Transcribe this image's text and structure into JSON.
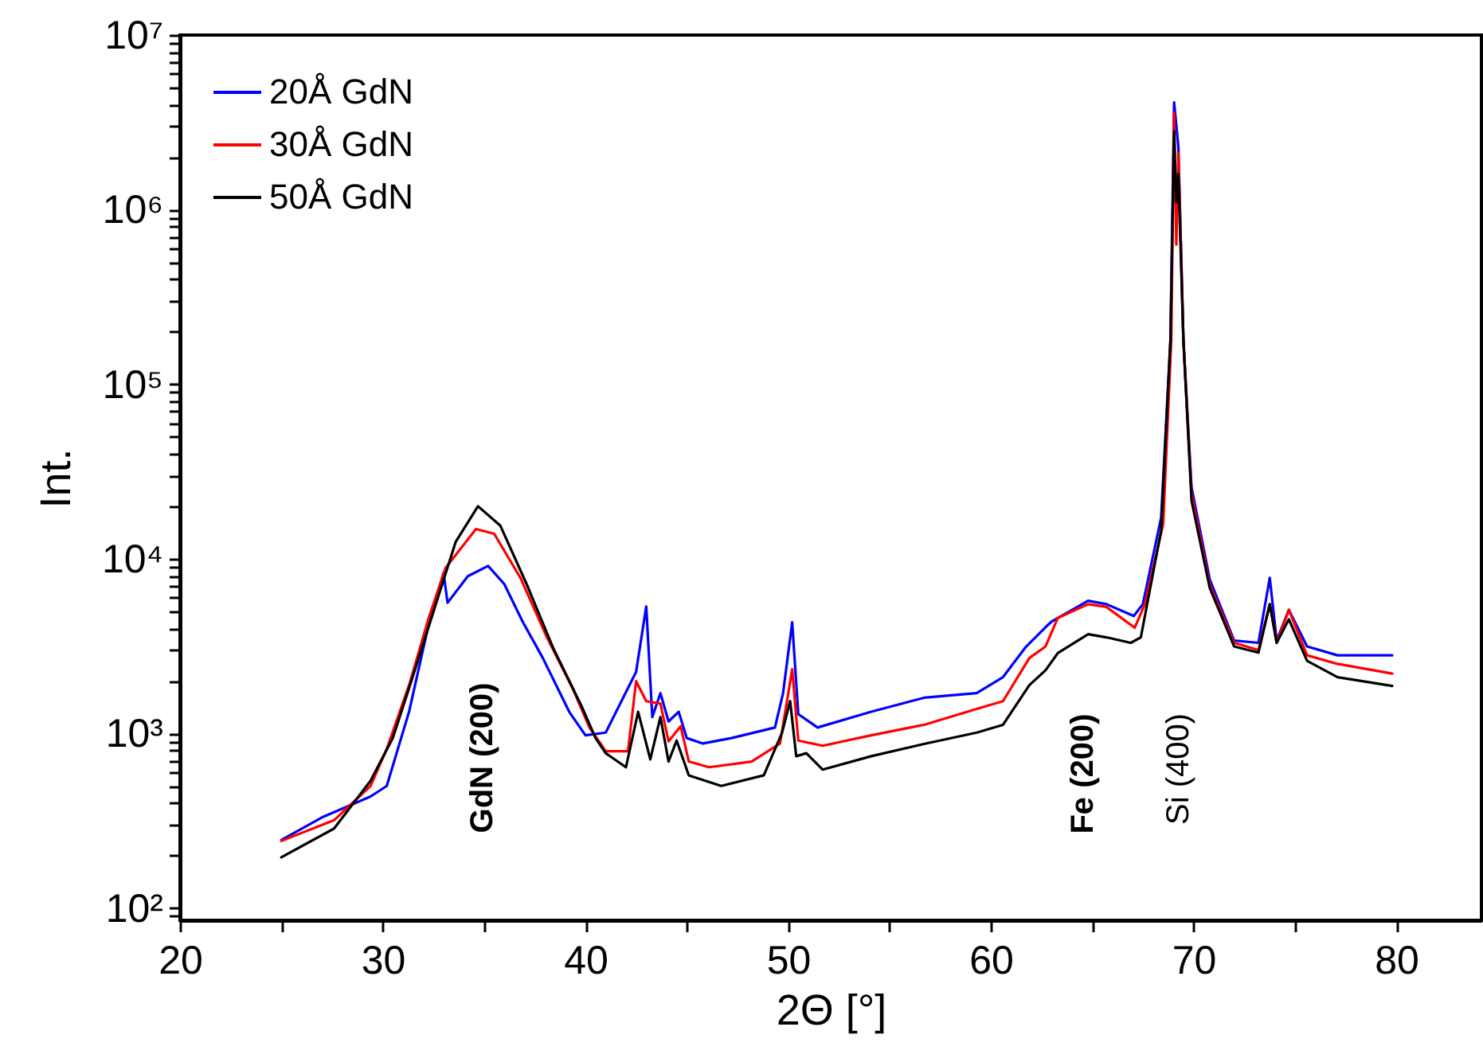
{
  "chart_data": {
    "type": "line",
    "xlabel": "2Θ [°]",
    "ylabel": "Int.",
    "log": "y",
    "legend": "top left",
    "grid": false,
    "line_style": "solid",
    "marker": "none",
    "xlim": [
      20,
      84.2
    ],
    "ylim": [
      85,
      10000000
    ],
    "xticks": [
      20,
      {
        "value": 25,
        "label": null
      },
      30,
      {
        "value": 35,
        "label": null
      },
      40,
      {
        "value": 45,
        "label": null
      },
      50,
      {
        "value": 55,
        "label": null
      },
      60,
      {
        "value": 65,
        "label": null
      },
      70,
      {
        "value": 75,
        "label": null
      },
      80
    ],
    "yticks": [
      {
        "value": 90,
        "label": null
      },
      {
        "value": 100,
        "label": "10²"
      },
      {
        "value": 200,
        "label": null
      },
      {
        "value": 300,
        "label": null
      },
      {
        "value": 400,
        "label": null
      },
      {
        "value": 500,
        "label": null
      },
      {
        "value": 600,
        "label": null
      },
      {
        "value": 700,
        "label": null
      },
      {
        "value": 800,
        "label": null
      },
      {
        "value": 900,
        "label": null
      },
      {
        "value": 1000,
        "label": "10³"
      },
      {
        "value": 2000,
        "label": null
      },
      {
        "value": 3000,
        "label": null
      },
      {
        "value": 4000,
        "label": null
      },
      {
        "value": 5000,
        "label": null
      },
      {
        "value": 6000,
        "label": null
      },
      {
        "value": 7000,
        "label": null
      },
      {
        "value": 8000,
        "label": null
      },
      {
        "value": 9000,
        "label": null
      },
      {
        "value": 10000,
        "label": "10⁴"
      },
      {
        "value": 20000,
        "label": null
      },
      {
        "value": 30000,
        "label": null
      },
      {
        "value": 40000,
        "label": null
      },
      {
        "value": 50000,
        "label": null
      },
      {
        "value": 60000,
        "label": null
      },
      {
        "value": 70000,
        "label": null
      },
      {
        "value": 80000,
        "label": null
      },
      {
        "value": 90000,
        "label": null
      },
      {
        "value": 100000,
        "label": "10⁵"
      },
      {
        "value": 200000,
        "label": null
      },
      {
        "value": 300000,
        "label": null
      },
      {
        "value": 400000,
        "label": null
      },
      {
        "value": 500000,
        "label": null
      },
      {
        "value": 600000,
        "label": null
      },
      {
        "value": 700000,
        "label": null
      },
      {
        "value": 800000,
        "label": null
      },
      {
        "value": 900000,
        "label": null
      },
      {
        "value": 1000000,
        "label": "10⁶"
      },
      {
        "value": 2000000,
        "label": null
      },
      {
        "value": 3000000,
        "label": null
      },
      {
        "value": 4000000,
        "label": null
      },
      {
        "value": 5000000,
        "label": null
      },
      {
        "value": 6000000,
        "label": null
      },
      {
        "value": 7000000,
        "label": null
      },
      {
        "value": 8000000,
        "label": null
      },
      {
        "value": 9000000,
        "label": null
      },
      {
        "value": 10000000,
        "label": "10⁷"
      }
    ],
    "series": [
      {
        "name": "20Å GdN",
        "color": "#0000ff",
        "x": [
          25.0,
          27.0,
          29.4,
          30.2,
          31.3,
          32.3,
          33.0,
          33.2,
          34.2,
          35.2,
          36.0,
          36.9,
          37.9,
          39.2,
          40.0,
          41.0,
          42.5,
          43.0,
          43.3,
          43.7,
          44.1,
          44.6,
          45.0,
          45.8,
          47.2,
          49.35,
          49.75,
          50.2,
          50.5,
          51.45,
          54.1,
          56.7,
          59.3,
          60.6,
          61.7,
          62.7,
          63.0,
          64.8,
          65.7,
          67.05,
          67.5,
          68.4,
          68.86,
          69.04,
          69.25,
          69.5,
          69.9,
          70.8,
          72.0,
          73.2,
          73.76,
          74.1,
          74.7,
          75.6,
          77.1,
          79.8
        ],
        "values": [
          245,
          330,
          435,
          500,
          1330,
          4370,
          8300,
          5600,
          7950,
          9100,
          7160,
          4370,
          2700,
          1330,
          975,
          1010,
          2250,
          5330,
          1240,
          1700,
          1170,
          1330,
          940,
          875,
          940,
          1080,
          1700,
          4330,
          1290,
          1080,
          1330,
          1600,
          1700,
          2100,
          3100,
          4060,
          4370,
          5750,
          5500,
          4700,
          5500,
          17200,
          178000,
          4110000,
          2300000,
          178000,
          25700,
          7610,
          3400,
          3300,
          7780,
          3400,
          5100,
          3150,
          2800,
          2800
        ]
      },
      {
        "name": "30Å GdN",
        "color": "#ff0000",
        "x": [
          25.0,
          27.6,
          29.4,
          30.2,
          31.3,
          32.3,
          33.1,
          34.6,
          35.5,
          36.8,
          38.1,
          39.4,
          40.2,
          41.0,
          42.1,
          42.5,
          43.0,
          43.7,
          44.1,
          44.7,
          45.1,
          46.1,
          48.2,
          49.6,
          50.2,
          50.5,
          51.7,
          54.1,
          56.7,
          59.3,
          60.6,
          61.9,
          62.7,
          63.3,
          64.8,
          65.7,
          67.1,
          67.6,
          68.5,
          68.9,
          69.04,
          69.15,
          69.25,
          69.5,
          69.9,
          70.8,
          72.0,
          73.2,
          73.76,
          74.1,
          74.7,
          75.6,
          77.1,
          79.8
        ],
        "values": [
          242,
          318,
          500,
          815,
          1890,
          4700,
          8860,
          14800,
          13900,
          7750,
          3550,
          1780,
          1080,
          790,
          790,
          1990,
          1530,
          1480,
          900,
          1100,
          690,
          640,
          690,
          875,
          2330,
          910,
          850,
          975,
          1120,
          1380,
          1530,
          2700,
          3150,
          4580,
          5500,
          5300,
          4030,
          5500,
          15800,
          178000,
          3600000,
          630000,
          2100000,
          178000,
          23500,
          7100,
          3300,
          3000,
          5500,
          3300,
          5100,
          2800,
          2500,
          2200
        ]
      },
      {
        "name": "50Å GdN",
        "color": "#000000",
        "x": [
          25.0,
          27.6,
          29.4,
          30.5,
          31.6,
          32.6,
          33.6,
          34.7,
          35.8,
          37.1,
          38.4,
          39.8,
          40.5,
          41.0,
          42.0,
          42.6,
          43.2,
          43.7,
          44.1,
          44.5,
          45.1,
          46.7,
          48.8,
          49.7,
          50.1,
          50.4,
          50.9,
          51.7,
          54.1,
          56.7,
          59.3,
          60.6,
          61.9,
          62.7,
          63.3,
          64.8,
          65.7,
          66.9,
          67.4,
          68.4,
          68.86,
          69.04,
          69.15,
          69.25,
          69.5,
          69.9,
          70.8,
          72.0,
          73.2,
          73.76,
          74.1,
          74.7,
          75.6,
          77.1,
          79.8
        ],
        "values": [
          195,
          285,
          535,
          940,
          2330,
          5400,
          12500,
          20000,
          15500,
          7160,
          3100,
          1440,
          940,
          770,
          640,
          1330,
          710,
          1240,
          690,
          910,
          575,
          500,
          575,
          1010,
          1530,
          740,
          770,
          620,
          740,
          870,
          1010,
          1120,
          1890,
          2300,
          2880,
          3700,
          3550,
          3300,
          3550,
          14500,
          178000,
          2800000,
          1100000,
          1600000,
          178000,
          21500,
          6800,
          3150,
          2900,
          5500,
          3300,
          4500,
          2600,
          2100,
          1870
        ]
      }
    ],
    "annotations": [
      "GdN (200)",
      "Fe (200)",
      "Si (400)"
    ]
  }
}
